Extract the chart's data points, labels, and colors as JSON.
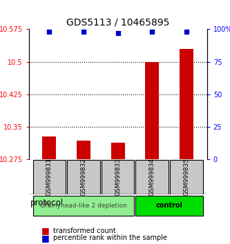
{
  "title": "GDS5113 / 10465895",
  "samples": [
    "GSM999831",
    "GSM999832",
    "GSM999833",
    "GSM999834",
    "GSM999835"
  ],
  "red_values": [
    10.327,
    10.318,
    10.313,
    10.5,
    10.53
  ],
  "blue_values": [
    98,
    98,
    97,
    98,
    98
  ],
  "ylim_left": [
    10.275,
    10.575
  ],
  "ylim_right": [
    0,
    100
  ],
  "yticks_left": [
    10.275,
    10.35,
    10.425,
    10.5,
    10.575
  ],
  "ytick_labels_left": [
    "10.275",
    "10.35",
    "10.425",
    "10.5",
    "10.575"
  ],
  "yticks_right": [
    0,
    25,
    50,
    75,
    100
  ],
  "ytick_labels_right": [
    "0",
    "25",
    "50",
    "75",
    "100%"
  ],
  "hlines": [
    10.35,
    10.425,
    10.5
  ],
  "groups": [
    {
      "label": "Grainyhead-like 2 depletion",
      "color": "#90EE90",
      "samples": [
        0,
        1,
        2
      ]
    },
    {
      "label": "control",
      "color": "#00DD00",
      "samples": [
        3,
        4
      ]
    }
  ],
  "protocol_label": "protocol",
  "legend_red": "transformed count",
  "legend_blue": "percentile rank within the sample",
  "bar_color": "#CC0000",
  "dot_color": "#0000CC",
  "bar_width": 0.4,
  "base_value": 10.275
}
